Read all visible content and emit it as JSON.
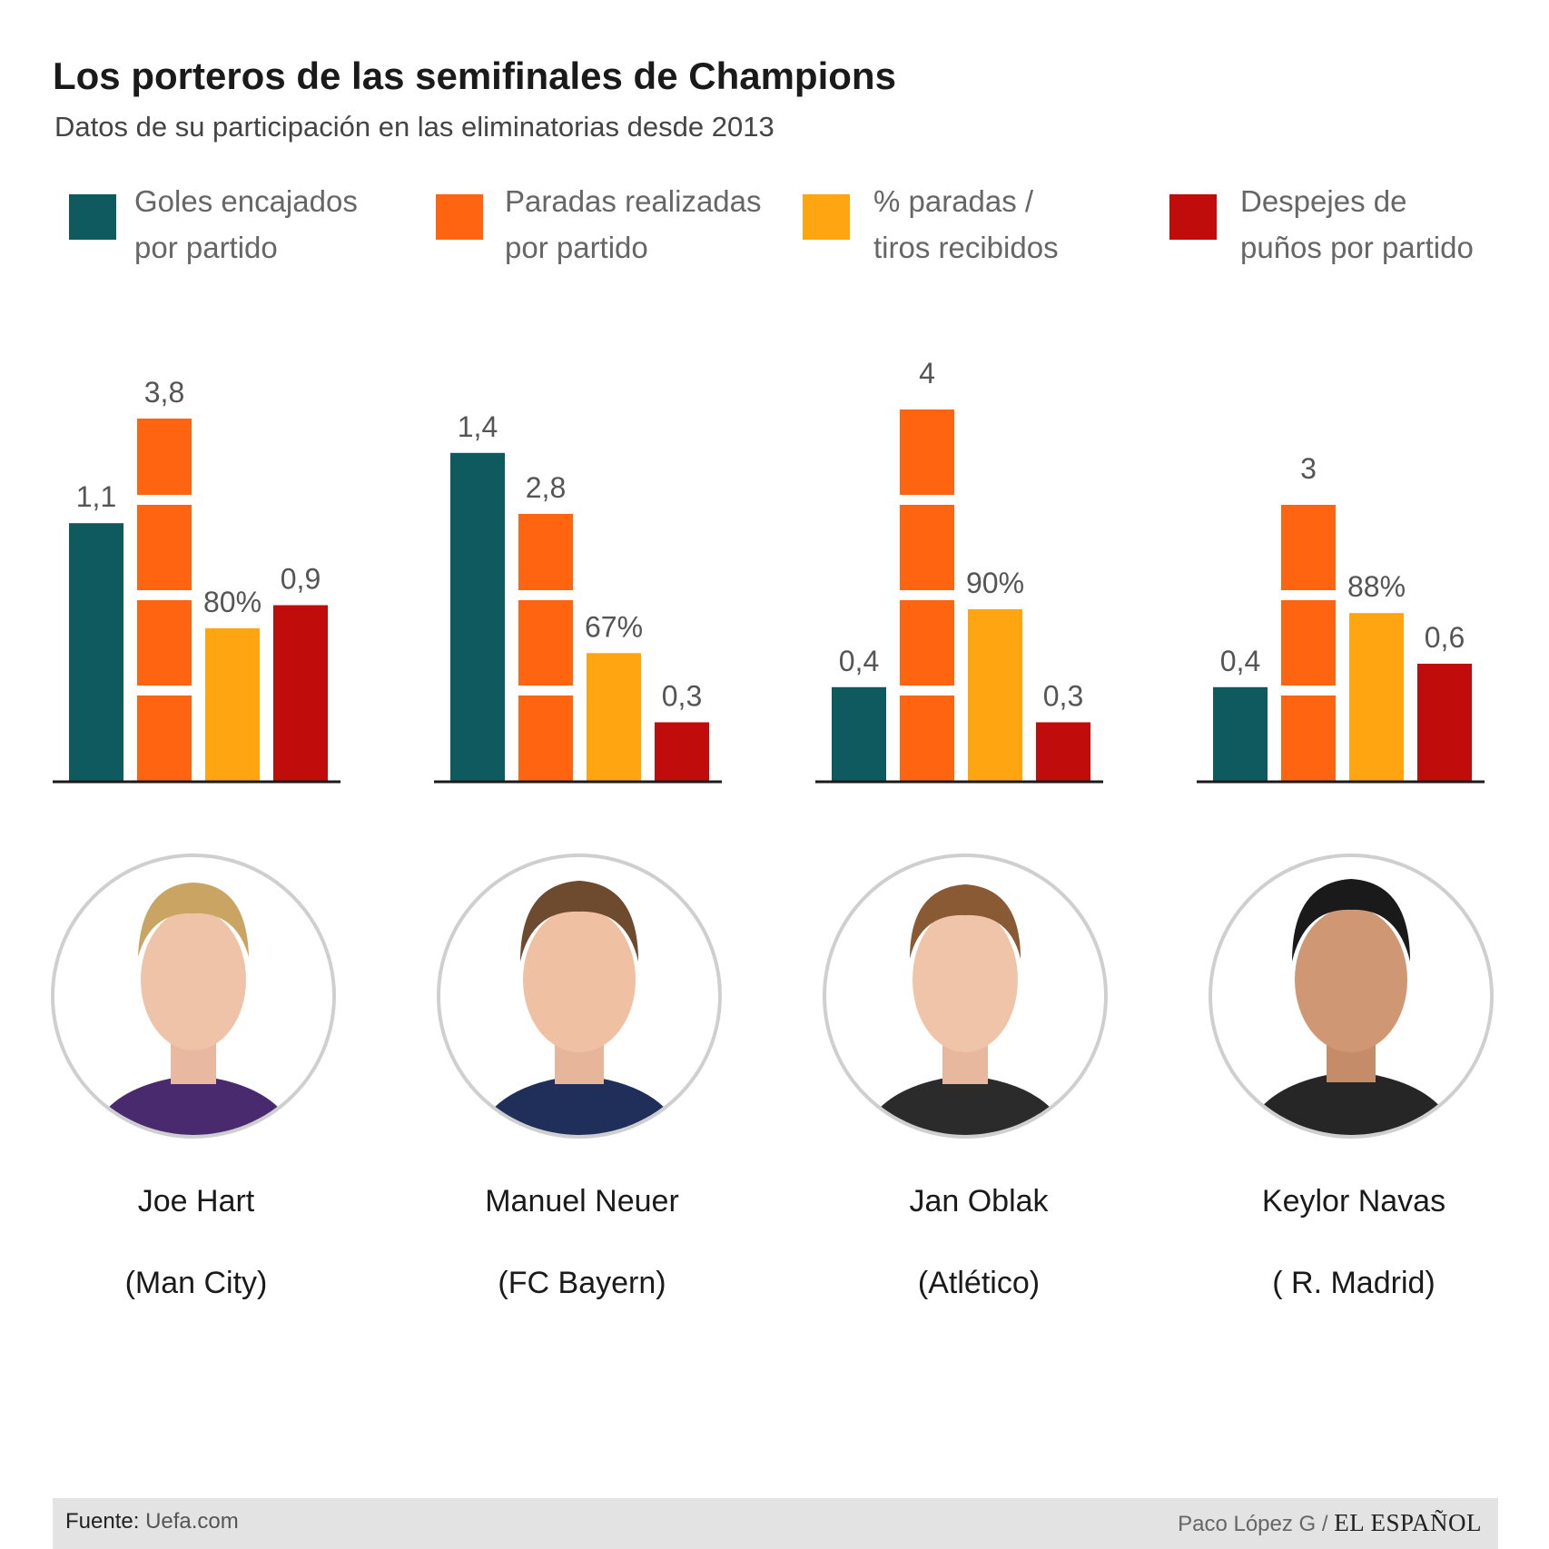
{
  "title": "Los porteros de las semifinales de Champions",
  "subtitle": "Datos de su participación en las eliminatorias desde 2013",
  "colors": {
    "goles": "#0e5a5e",
    "paradas": "#ff6510",
    "porcentaje": "#ffa512",
    "despejes": "#c10c0c",
    "value_label": "#555555",
    "baseline": "#1a1a1a"
  },
  "legend": [
    {
      "line1": "Goles encajados",
      "line2": "por partido",
      "color": "#0e5a5e"
    },
    {
      "line1": "Paradas realizadas",
      "line2": "por partido",
      "color": "#ff6510"
    },
    {
      "line1": "% paradas /",
      "line2": "tiros recibidos",
      "color": "#ffa512"
    },
    {
      "line1": "Despejes de",
      "line2": "puños por partido",
      "color": "#c10c0c"
    }
  ],
  "chart_data": {
    "type": "bar",
    "categories": [
      "Joe Hart",
      "Manuel Neuer",
      "Jan Oblak",
      "Keylor Navas"
    ],
    "series": [
      {
        "name": "Goles encajados por partido",
        "values": [
          1.1,
          1.4,
          0.4,
          0.4
        ],
        "labels": [
          "1,1",
          "1,4",
          "0,4",
          "0,4"
        ],
        "color": "#0e5a5e"
      },
      {
        "name": "Paradas realizadas por partido",
        "values": [
          3.8,
          2.8,
          4,
          3
        ],
        "labels": [
          "3,8",
          "2,8",
          "4",
          "3"
        ],
        "color": "#ff6510"
      },
      {
        "name": "% paradas / tiros recibidos",
        "values": [
          80,
          67,
          90,
          88
        ],
        "labels": [
          "80%",
          "67%",
          "90%",
          "88%"
        ],
        "color": "#ffa512"
      },
      {
        "name": "Despejes de puños por partido",
        "values": [
          0.9,
          0.3,
          0.3,
          0.6
        ],
        "labels": [
          "0,9",
          "0,3",
          "0,3",
          "0,6"
        ],
        "color": "#c10c0c"
      }
    ]
  },
  "players": [
    {
      "name": "Joe Hart",
      "team": "(Man City)"
    },
    {
      "name": "Manuel Neuer",
      "team": "(FC Bayern)"
    },
    {
      "name": "Jan Oblak",
      "team": "(Atlético)"
    },
    {
      "name": "Keylor Navas",
      "team": "( R. Madrid)"
    }
  ],
  "footer": {
    "source_label": "Fuente:",
    "source_value": "Uefa.com",
    "author": "Paco López G /",
    "brand": "EL ESPAÑOL"
  }
}
